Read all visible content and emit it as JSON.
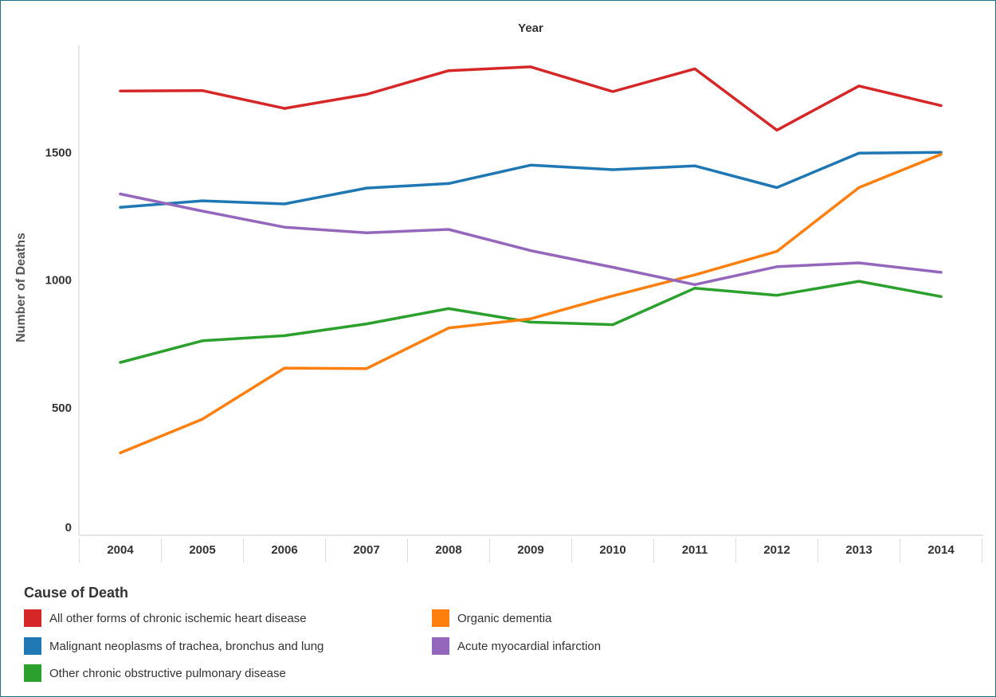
{
  "chart_data": {
    "type": "line",
    "title": "Year",
    "xlabel": "",
    "ylabel": "Number of Deaths",
    "categories": [
      "2004",
      "2005",
      "2006",
      "2007",
      "2008",
      "2009",
      "2010",
      "2011",
      "2012",
      "2013",
      "2014"
    ],
    "yticks": [
      "0",
      "500",
      "1000",
      "1500"
    ],
    "ylim": [
      0,
      1900
    ],
    "grid": false,
    "legend_position": "bottom-left",
    "series": [
      {
        "name": "All other forms of chronic ischemic heart disease",
        "color": "#d62728",
        "values": [
          1740,
          1742,
          1672,
          1727,
          1820,
          1835,
          1738,
          1827,
          1587,
          1760,
          1683
        ]
      },
      {
        "name": "Malignant neoplasms of trachea, bronchus and lung",
        "color": "#1f77b4",
        "values": [
          1285,
          1310,
          1298,
          1360,
          1378,
          1450,
          1432,
          1447,
          1362,
          1497,
          1500
        ]
      },
      {
        "name": "Other chronic obstructive pulmonary disease",
        "color": "#2ca02c",
        "values": [
          677,
          762,
          782,
          828,
          888,
          835,
          825,
          968,
          940,
          995,
          935
        ]
      },
      {
        "name": "Organic dementia",
        "color": "#ff7f0e",
        "values": [
          323,
          455,
          655,
          653,
          812,
          848,
          938,
          1020,
          1112,
          1362,
          1492
        ]
      },
      {
        "name": "Acute myocardial infarction",
        "color": "#9467bd",
        "values": [
          1337,
          1270,
          1207,
          1185,
          1198,
          1115,
          1050,
          982,
          1052,
          1067,
          1030
        ]
      }
    ]
  },
  "legend": {
    "title": "Cause of Death",
    "items": [
      {
        "label": "All other forms of chronic ischemic heart disease",
        "color": "#d62728"
      },
      {
        "label": "Organic dementia",
        "color": "#ff7f0e"
      },
      {
        "label": "Malignant neoplasms of trachea, bronchus and lung",
        "color": "#1f77b4"
      },
      {
        "label": "Acute myocardial infarction",
        "color": "#9467bd"
      },
      {
        "label": "Other chronic obstructive pulmonary disease",
        "color": "#2ca02c"
      }
    ]
  }
}
